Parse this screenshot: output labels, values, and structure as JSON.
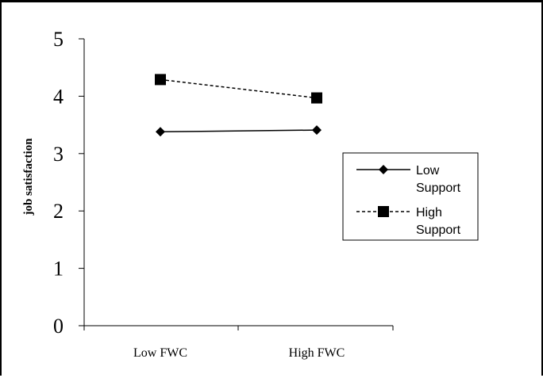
{
  "chart_data": {
    "type": "line",
    "title": "",
    "xlabel": "",
    "ylabel": "job satisfaction",
    "categories": [
      "Low FWC",
      "High FWC"
    ],
    "ylim": [
      0,
      5
    ],
    "yticks": [
      "0",
      "1",
      "2",
      "3",
      "4",
      "5"
    ],
    "grid": false,
    "legend_position": "right",
    "series": [
      {
        "name_lines": [
          "Low",
          "Support"
        ],
        "values": [
          3.38,
          3.41
        ],
        "line": "solid",
        "marker": "diamond",
        "color": "#000000"
      },
      {
        "name_lines": [
          "High",
          "Support"
        ],
        "values": [
          4.29,
          3.97
        ],
        "line": "dashed",
        "marker": "square",
        "color": "#000000"
      }
    ]
  }
}
